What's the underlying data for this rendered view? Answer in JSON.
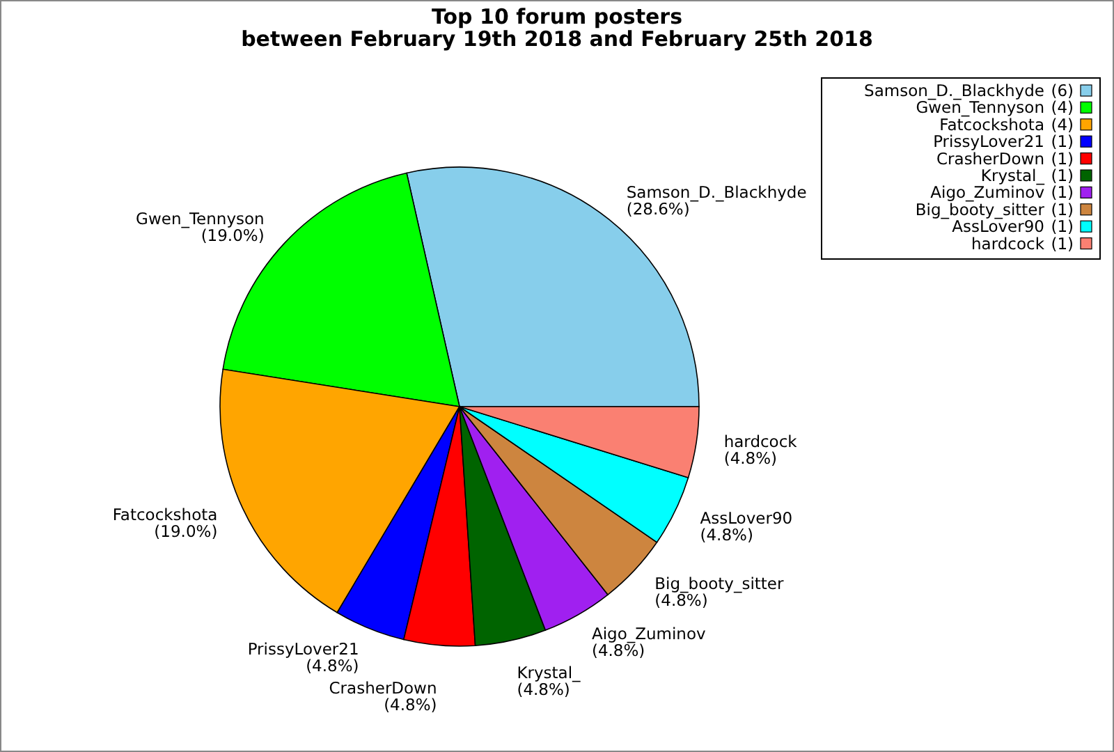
{
  "chart_data": {
    "type": "pie",
    "title": "Top 10 forum posters",
    "subtitle": "between February 19th 2018 and February 25th 2018",
    "categories": [
      "Samson_D._Blackhyde",
      "Gwen_Tennyson",
      "Fatcockshota",
      "PrissyLover21",
      "CrasherDown",
      "Krystal_",
      "Aigo_Zuminov",
      "Big_booty_sitter",
      "AssLover90",
      "hardcock"
    ],
    "values": [
      28.6,
      19.0,
      19.0,
      4.8,
      4.8,
      4.8,
      4.8,
      4.8,
      4.8,
      4.8
    ],
    "value_labels": [
      "(28.6%)",
      "(19.0%)",
      "(19.0%)",
      "(4.8%)",
      "(4.8%)",
      "(4.8%)",
      "(4.8%)",
      "(4.8%)",
      "(4.8%)",
      "(4.8%)"
    ],
    "annotations": [
      "(6)",
      "(4)",
      "(4)",
      "(1)",
      "(1)",
      "(1)",
      "(1)",
      "(1)",
      "(1)",
      "(1)"
    ],
    "colors": [
      "#87ceeb",
      "#00ff00",
      "#ffa500",
      "#0000ff",
      "#ff0000",
      "#006400",
      "#a020f0",
      "#cd853f",
      "#00ffff",
      "#fa8072"
    ],
    "legend": "top right"
  }
}
